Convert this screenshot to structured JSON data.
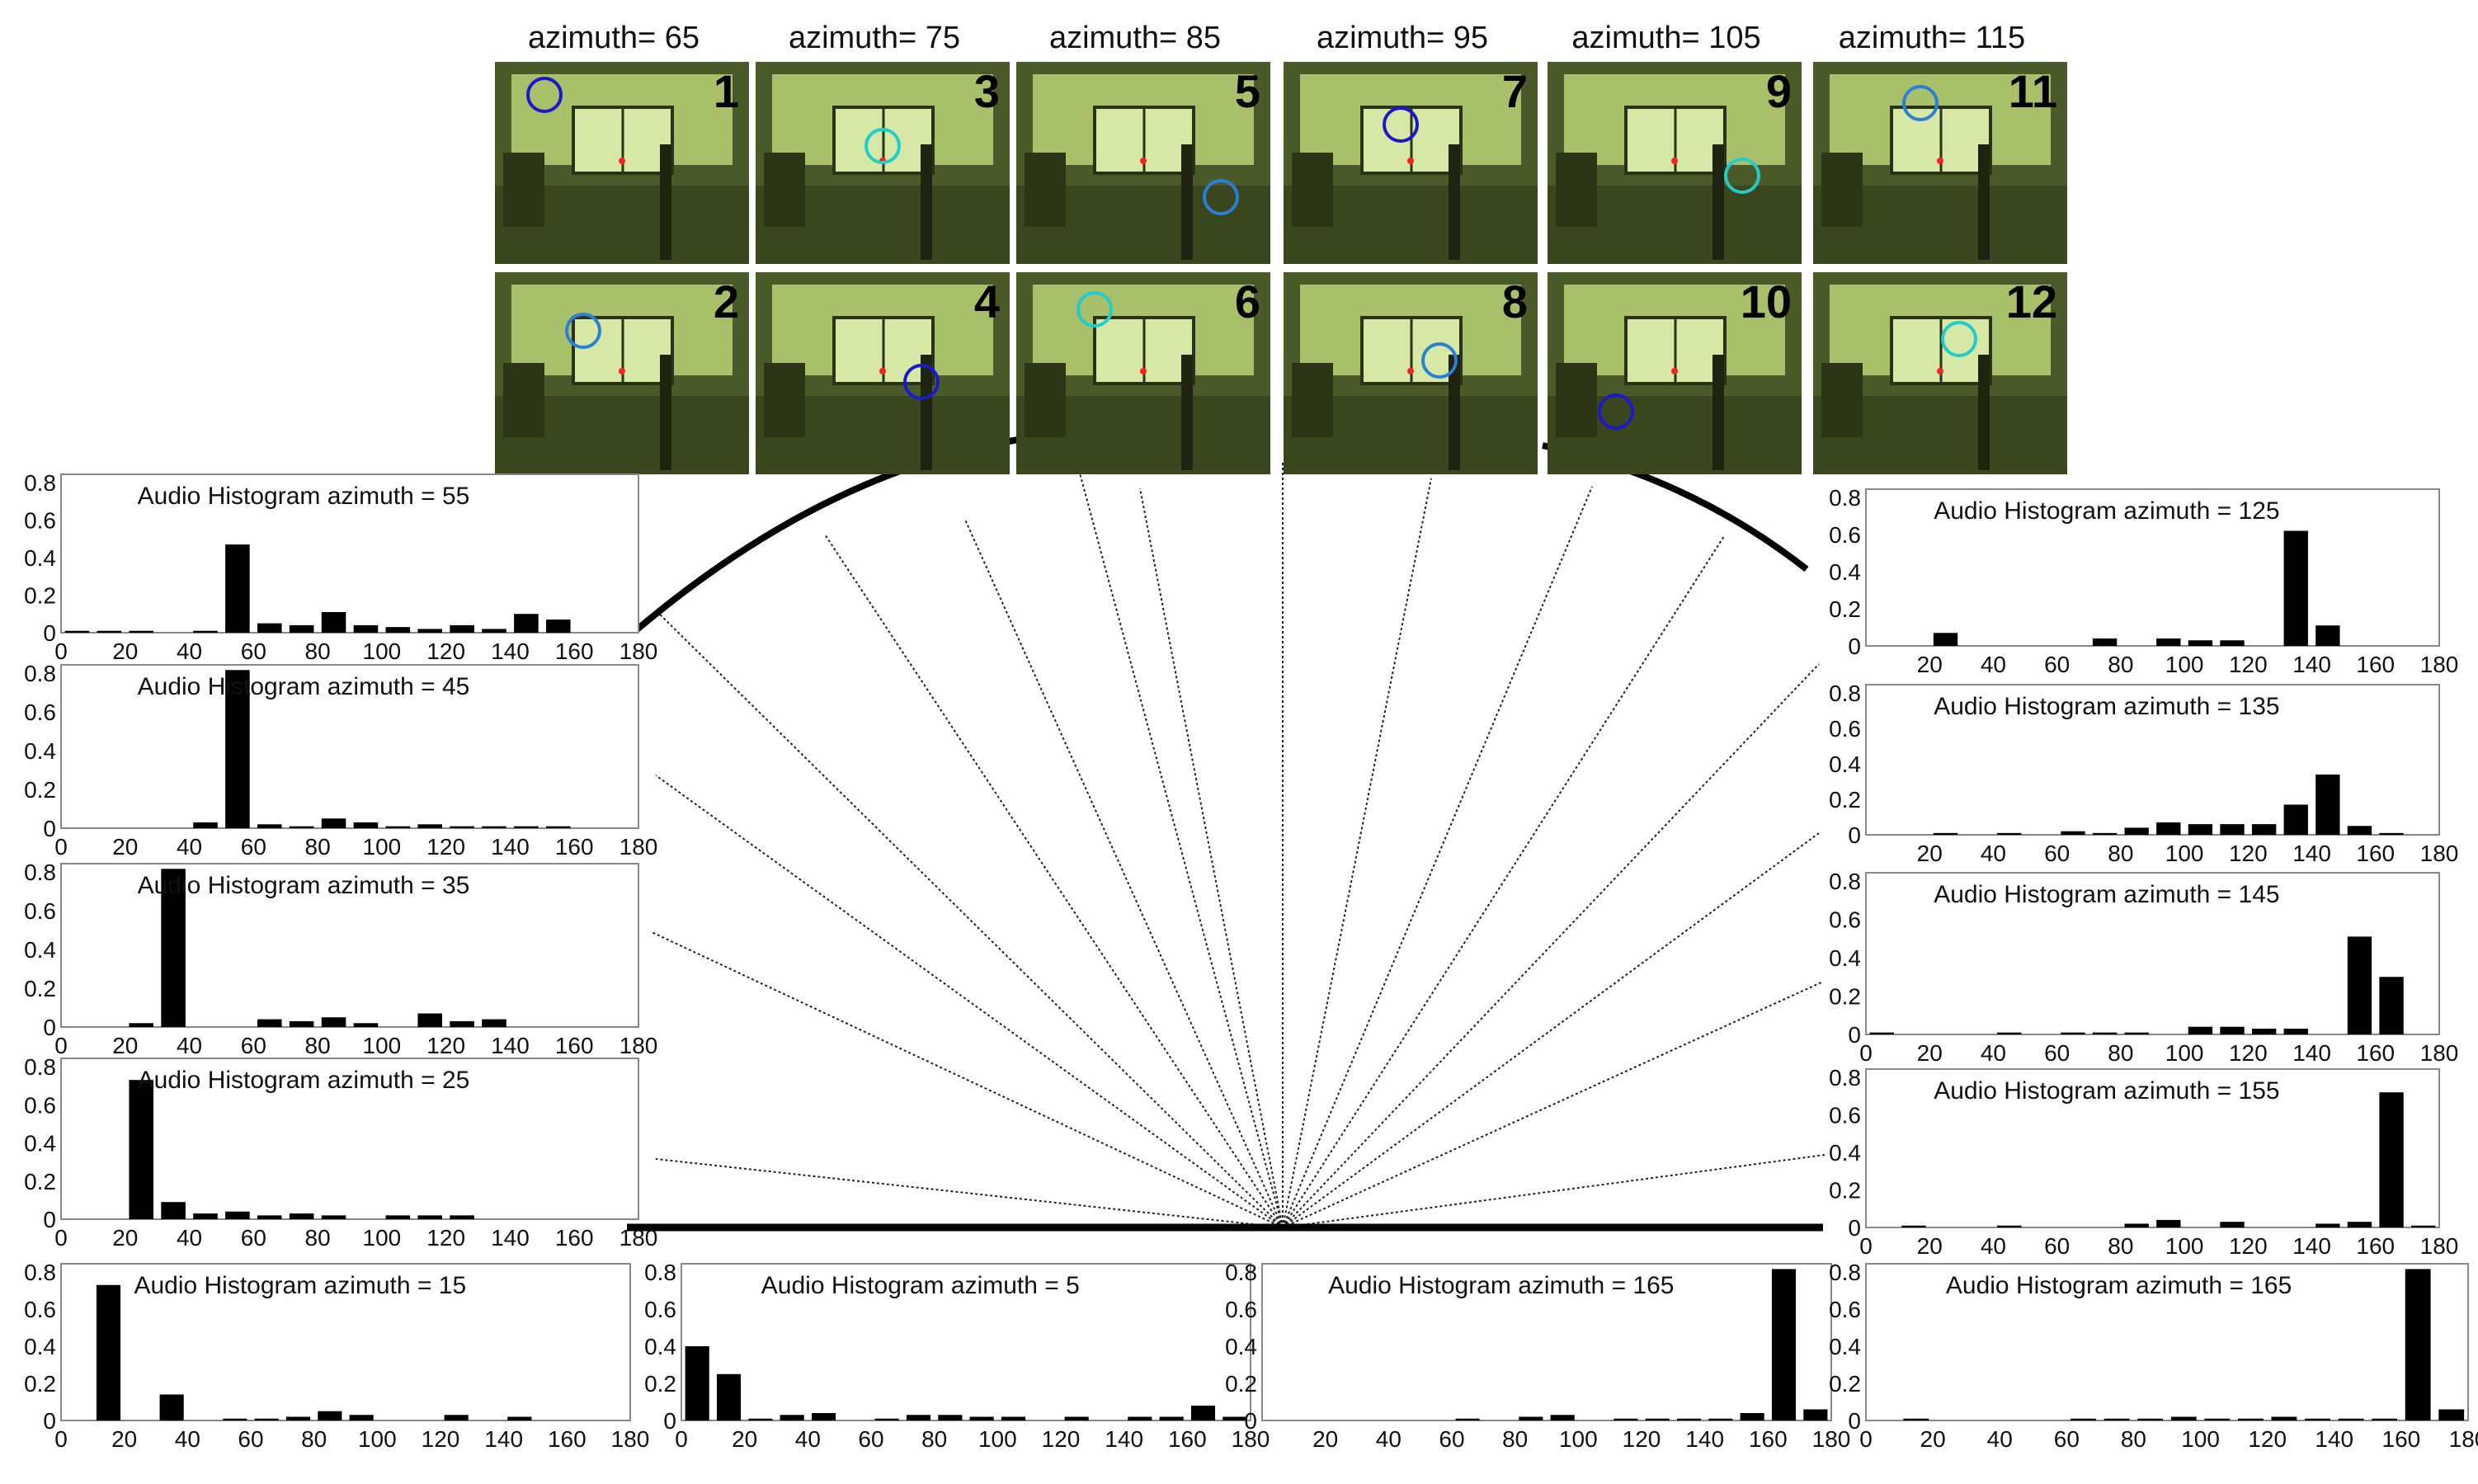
{
  "camera_panel": {
    "columns": [
      {
        "azimuth_label": "azimuth= 65",
        "frames": [
          {
            "number": "1"
          },
          {
            "number": "2"
          }
        ]
      },
      {
        "azimuth_label": "azimuth= 75",
        "frames": [
          {
            "number": "3"
          },
          {
            "number": "4"
          }
        ]
      },
      {
        "azimuth_label": "azimuth= 85",
        "frames": [
          {
            "number": "5"
          },
          {
            "number": "6"
          }
        ]
      },
      {
        "azimuth_label": "azimuth= 95",
        "frames": [
          {
            "number": "7"
          },
          {
            "number": "8"
          }
        ]
      },
      {
        "azimuth_label": "azimuth= 105",
        "frames": [
          {
            "number": "9"
          },
          {
            "number": "10"
          }
        ]
      },
      {
        "azimuth_label": "azimuth= 115",
        "frames": [
          {
            "number": "11"
          },
          {
            "number": "12"
          }
        ]
      }
    ],
    "colors": {
      "frame_tint": "#6f8a3c",
      "face_circle": "#1a1acc",
      "marker_circle": "#2a7fd6",
      "cyan_circle": "#22cccc",
      "green_circle": "#22cc33",
      "center_dot": "#ff2020"
    }
  },
  "chart_data": [
    {
      "type": "bar",
      "title": "Audio Histogram  azimuth = 55",
      "categories": [
        0,
        10,
        20,
        30,
        40,
        50,
        60,
        70,
        80,
        90,
        100,
        110,
        120,
        130,
        140,
        150,
        160,
        170
      ],
      "values": [
        0.01,
        0.01,
        0.01,
        0.0,
        0.01,
        0.47,
        0.05,
        0.04,
        0.11,
        0.04,
        0.03,
        0.02,
        0.04,
        0.02,
        0.1,
        0.07,
        0.0,
        0.0
      ],
      "xlim": [
        0,
        180
      ],
      "ylim": [
        0,
        0.8
      ],
      "yticks": [
        "0",
        "0.2",
        "0.4",
        "0.6",
        "0.8"
      ],
      "xticks": [
        "0",
        "20",
        "40",
        "60",
        "80",
        "100",
        "120",
        "140",
        "160",
        "180"
      ]
    },
    {
      "type": "bar",
      "title": "Audio Histogram  azimuth = 45",
      "categories": [
        0,
        10,
        20,
        30,
        40,
        50,
        60,
        70,
        80,
        90,
        100,
        110,
        120,
        130,
        140,
        150,
        160,
        170
      ],
      "values": [
        0.0,
        0.0,
        0.0,
        0.0,
        0.03,
        0.85,
        0.02,
        0.01,
        0.05,
        0.03,
        0.01,
        0.02,
        0.01,
        0.01,
        0.01,
        0.01,
        0.0,
        0.0
      ],
      "xlim": [
        0,
        180
      ],
      "ylim": [
        0,
        0.8
      ],
      "yticks": [
        "0",
        "0.2",
        "0.4",
        "0.6",
        "0.8"
      ],
      "xticks": [
        "0",
        "20",
        "40",
        "60",
        "80",
        "100",
        "120",
        "140",
        "160",
        "180"
      ]
    },
    {
      "type": "bar",
      "title": "Audio Histogram  azimuth = 35",
      "categories": [
        0,
        10,
        20,
        30,
        40,
        50,
        60,
        70,
        80,
        90,
        100,
        110,
        120,
        130,
        140,
        150,
        160,
        170
      ],
      "values": [
        0.0,
        0.0,
        0.02,
        0.82,
        0.0,
        0.0,
        0.04,
        0.03,
        0.05,
        0.02,
        0.0,
        0.07,
        0.03,
        0.04,
        0.0,
        0.0,
        0.0,
        0.0
      ],
      "xlim": [
        0,
        180
      ],
      "ylim": [
        0,
        0.8
      ],
      "yticks": [
        "0",
        "0.2",
        "0.4",
        "0.6",
        "0.8"
      ],
      "xticks": [
        "0",
        "20",
        "40",
        "60",
        "80",
        "100",
        "120",
        "140",
        "160",
        "180"
      ]
    },
    {
      "type": "bar",
      "title": "Audio Histogram  azimuth = 25",
      "categories": [
        0,
        10,
        20,
        30,
        40,
        50,
        60,
        70,
        80,
        90,
        100,
        110,
        120,
        130,
        140,
        150,
        160,
        170
      ],
      "values": [
        0.0,
        0.0,
        0.73,
        0.09,
        0.03,
        0.04,
        0.02,
        0.03,
        0.02,
        0.0,
        0.02,
        0.02,
        0.02,
        0.0,
        0.0,
        0.0,
        0.0,
        0.0
      ],
      "xlim": [
        0,
        180
      ],
      "ylim": [
        0,
        0.8
      ],
      "yticks": [
        "0",
        "0.2",
        "0.4",
        "0.6",
        "0.8"
      ],
      "xticks": [
        "0",
        "20",
        "40",
        "60",
        "80",
        "100",
        "120",
        "140",
        "160",
        "180"
      ]
    },
    {
      "type": "bar",
      "title": "Audio Histogram  azimuth = 15",
      "categories": [
        0,
        10,
        20,
        30,
        40,
        50,
        60,
        70,
        80,
        90,
        100,
        110,
        120,
        130,
        140,
        150,
        160,
        170
      ],
      "values": [
        0.0,
        0.73,
        0.0,
        0.14,
        0.0,
        0.01,
        0.01,
        0.02,
        0.05,
        0.03,
        0.0,
        0.0,
        0.03,
        0.0,
        0.02,
        0.0,
        0.0,
        0.0
      ],
      "xlim": [
        0,
        180
      ],
      "ylim": [
        0,
        0.8
      ],
      "yticks": [
        "0",
        "0.2",
        "0.4",
        "0.6",
        "0.8"
      ],
      "xticks": [
        "0",
        "20",
        "40",
        "60",
        "80",
        "100",
        "120",
        "140",
        "160",
        "180"
      ]
    },
    {
      "type": "bar",
      "title": "Audio Histogram  azimuth = 5",
      "categories": [
        0,
        10,
        20,
        30,
        40,
        50,
        60,
        70,
        80,
        90,
        100,
        110,
        120,
        130,
        140,
        150,
        160,
        170
      ],
      "values": [
        0.4,
        0.25,
        0.01,
        0.03,
        0.04,
        0.0,
        0.01,
        0.03,
        0.03,
        0.02,
        0.02,
        0.0,
        0.02,
        0.0,
        0.02,
        0.02,
        0.08,
        0.02
      ],
      "xlim": [
        0,
        180
      ],
      "ylim": [
        0,
        0.8
      ],
      "yticks": [
        "0",
        "0.2",
        "0.4",
        "0.6",
        "0.8"
      ],
      "xticks": [
        "0",
        "20",
        "40",
        "60",
        "80",
        "100",
        "120",
        "140",
        "160",
        "180"
      ]
    },
    {
      "type": "bar",
      "title": "Audio Histogram  azimuth = 165",
      "categories": [
        0,
        10,
        20,
        30,
        40,
        50,
        60,
        70,
        80,
        90,
        100,
        110,
        120,
        130,
        140,
        150,
        160,
        170
      ],
      "values": [
        0.0,
        0.0,
        0.0,
        0.0,
        0.0,
        0.0,
        0.01,
        0.0,
        0.02,
        0.03,
        0.0,
        0.01,
        0.01,
        0.01,
        0.01,
        0.04,
        0.88,
        0.06
      ],
      "xlim": [
        0,
        180
      ],
      "ylim": [
        0,
        0.8
      ],
      "yticks": [
        "0",
        "0.2",
        "0.4",
        "0.6",
        "0.8"
      ],
      "xticks": [
        "20",
        "40",
        "60",
        "80",
        "100",
        "120",
        "140",
        "160",
        "180"
      ]
    },
    {
      "type": "bar",
      "title": "Audio Histogram  azimuth = 165",
      "categories": [
        0,
        10,
        20,
        30,
        40,
        50,
        60,
        70,
        80,
        90,
        100,
        110,
        120,
        130,
        140,
        150,
        160,
        170
      ],
      "values": [
        0.0,
        0.01,
        0.0,
        0.0,
        0.0,
        0.0,
        0.01,
        0.01,
        0.01,
        0.02,
        0.01,
        0.01,
        0.02,
        0.01,
        0.01,
        0.01,
        0.88,
        0.06
      ],
      "xlim": [
        0,
        180
      ],
      "ylim": [
        0,
        0.8
      ],
      "yticks": [
        "0",
        "0.2",
        "0.4",
        "0.6",
        "0.8"
      ],
      "xticks": [
        "0",
        "20",
        "40",
        "60",
        "80",
        "100",
        "120",
        "140",
        "160",
        "180"
      ]
    },
    {
      "type": "bar",
      "title": "Audio Histogram  azimuth = 155",
      "categories": [
        0,
        10,
        20,
        30,
        40,
        50,
        60,
        70,
        80,
        90,
        100,
        110,
        120,
        130,
        140,
        150,
        160,
        170
      ],
      "values": [
        0.0,
        0.01,
        0.0,
        0.0,
        0.01,
        0.0,
        0.0,
        0.0,
        0.02,
        0.04,
        0.0,
        0.03,
        0.0,
        0.0,
        0.02,
        0.03,
        0.72,
        0.01
      ],
      "xlim": [
        0,
        180
      ],
      "ylim": [
        0,
        0.8
      ],
      "yticks": [
        "0",
        "0.2",
        "0.4",
        "0.6",
        "0.8"
      ],
      "xticks": [
        "0",
        "20",
        "40",
        "60",
        "80",
        "100",
        "120",
        "140",
        "160",
        "180"
      ]
    },
    {
      "type": "bar",
      "title": "Audio Histogram  azimuth = 145",
      "categories": [
        0,
        10,
        20,
        30,
        40,
        50,
        60,
        70,
        80,
        90,
        100,
        110,
        120,
        130,
        140,
        150,
        160,
        170
      ],
      "values": [
        0.01,
        0.0,
        0.0,
        0.0,
        0.01,
        0.0,
        0.01,
        0.01,
        0.01,
        0.0,
        0.04,
        0.04,
        0.03,
        0.03,
        0.0,
        0.51,
        0.3,
        0.0
      ],
      "xlim": [
        0,
        180
      ],
      "ylim": [
        0,
        0.8
      ],
      "yticks": [
        "0",
        "0.2",
        "0.4",
        "0.6",
        "0.8"
      ],
      "xticks": [
        "0",
        "20",
        "40",
        "60",
        "80",
        "100",
        "120",
        "140",
        "160",
        "180"
      ]
    },
    {
      "type": "bar",
      "title": "Audio Histogram  azimuth = 135",
      "categories": [
        0,
        10,
        20,
        30,
        40,
        50,
        60,
        70,
        80,
        90,
        100,
        110,
        120,
        130,
        140,
        150,
        160,
        170
      ],
      "values": [
        0.0,
        0.0,
        0.01,
        0.0,
        0.01,
        0.0,
        0.02,
        0.01,
        0.04,
        0.07,
        0.06,
        0.06,
        0.06,
        0.17,
        0.34,
        0.05,
        0.01,
        0.0
      ],
      "xlim": [
        0,
        180
      ],
      "ylim": [
        0,
        0.8
      ],
      "yticks": [
        "0",
        "0.2",
        "0.4",
        "0.6",
        "0.8"
      ],
      "xticks": [
        "20",
        "40",
        "60",
        "80",
        "100",
        "120",
        "140",
        "160",
        "180"
      ]
    },
    {
      "type": "bar",
      "title": "Audio Histogram  azimuth = 125",
      "categories": [
        0,
        10,
        20,
        30,
        40,
        50,
        60,
        70,
        80,
        90,
        100,
        110,
        120,
        130,
        140,
        150,
        160,
        170
      ],
      "values": [
        0.0,
        0.0,
        0.07,
        0.0,
        0.0,
        0.0,
        0.0,
        0.04,
        0.0,
        0.04,
        0.03,
        0.03,
        0.0,
        0.62,
        0.11,
        0.0,
        0.0,
        0.0
      ],
      "xlim": [
        0,
        180
      ],
      "ylim": [
        0,
        0.8
      ],
      "yticks": [
        "0",
        "0.2",
        "0.4",
        "0.6",
        "0.8"
      ],
      "xticks": [
        "20",
        "40",
        "60",
        "80",
        "100",
        "120",
        "140",
        "160",
        "180"
      ]
    }
  ]
}
